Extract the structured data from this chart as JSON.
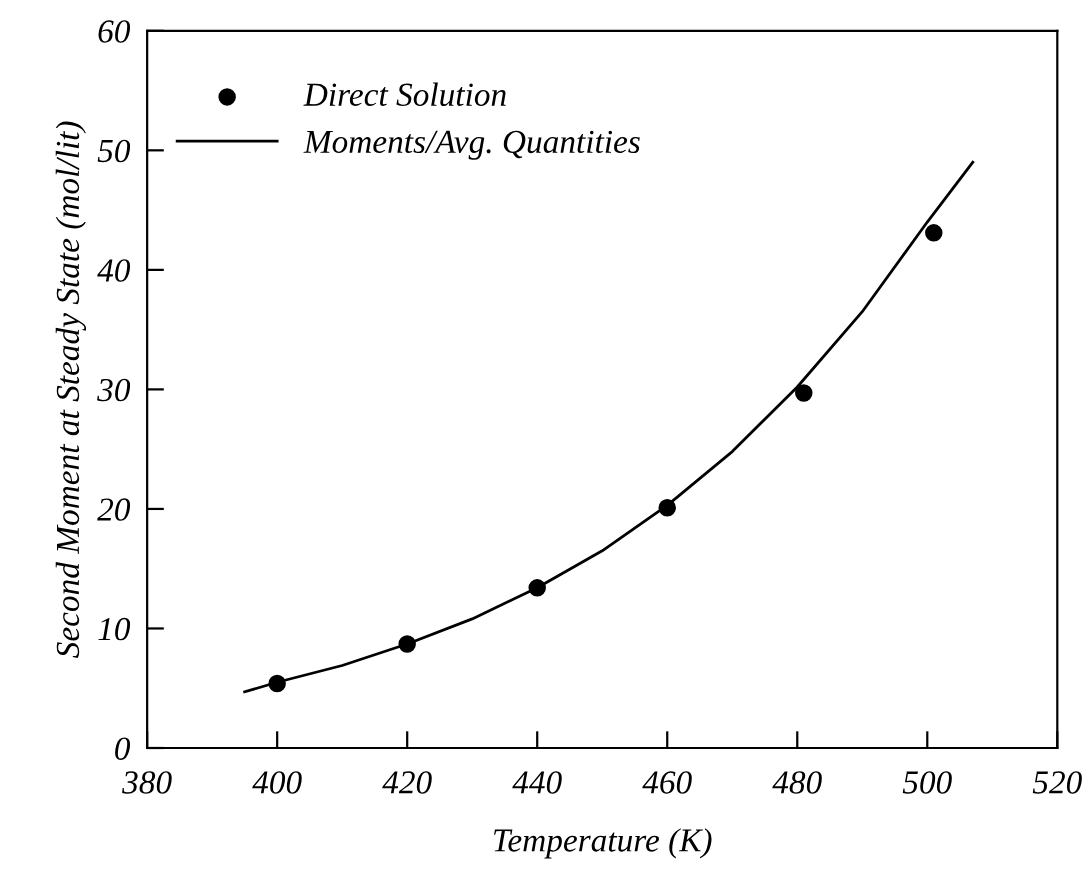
{
  "chart_data": {
    "type": "scatter",
    "xlabel": "Temperature (K)",
    "ylabel": "Second Moment at Steady State (mol/lit)",
    "xlim": [
      380,
      520
    ],
    "xticks": [
      380,
      400,
      420,
      440,
      460,
      480,
      500,
      520
    ],
    "ylim": [
      0,
      60
    ],
    "yticks": [
      0,
      10,
      20,
      30,
      40,
      50,
      60
    ],
    "grid": false,
    "legend": "top left",
    "series": [
      {
        "name": "Direct Solution",
        "marker": "circle",
        "color": "#000000",
        "x": [
          400,
          420,
          440,
          460,
          481,
          501
        ],
        "values": [
          5.4,
          8.7,
          13.4,
          20.1,
          29.7,
          43.1
        ]
      },
      {
        "name": "Moments/Avg. Quantities",
        "type": "line",
        "line_style": "solid",
        "color": "#000000",
        "x": [
          395,
          400,
          410,
          420,
          430,
          440,
          450,
          460,
          470,
          480,
          490,
          500,
          507
        ],
        "values": [
          4.7,
          5.5,
          6.9,
          8.7,
          10.8,
          13.4,
          16.5,
          20.3,
          24.8,
          30.2,
          36.5,
          44.0,
          49.0
        ]
      }
    ]
  }
}
